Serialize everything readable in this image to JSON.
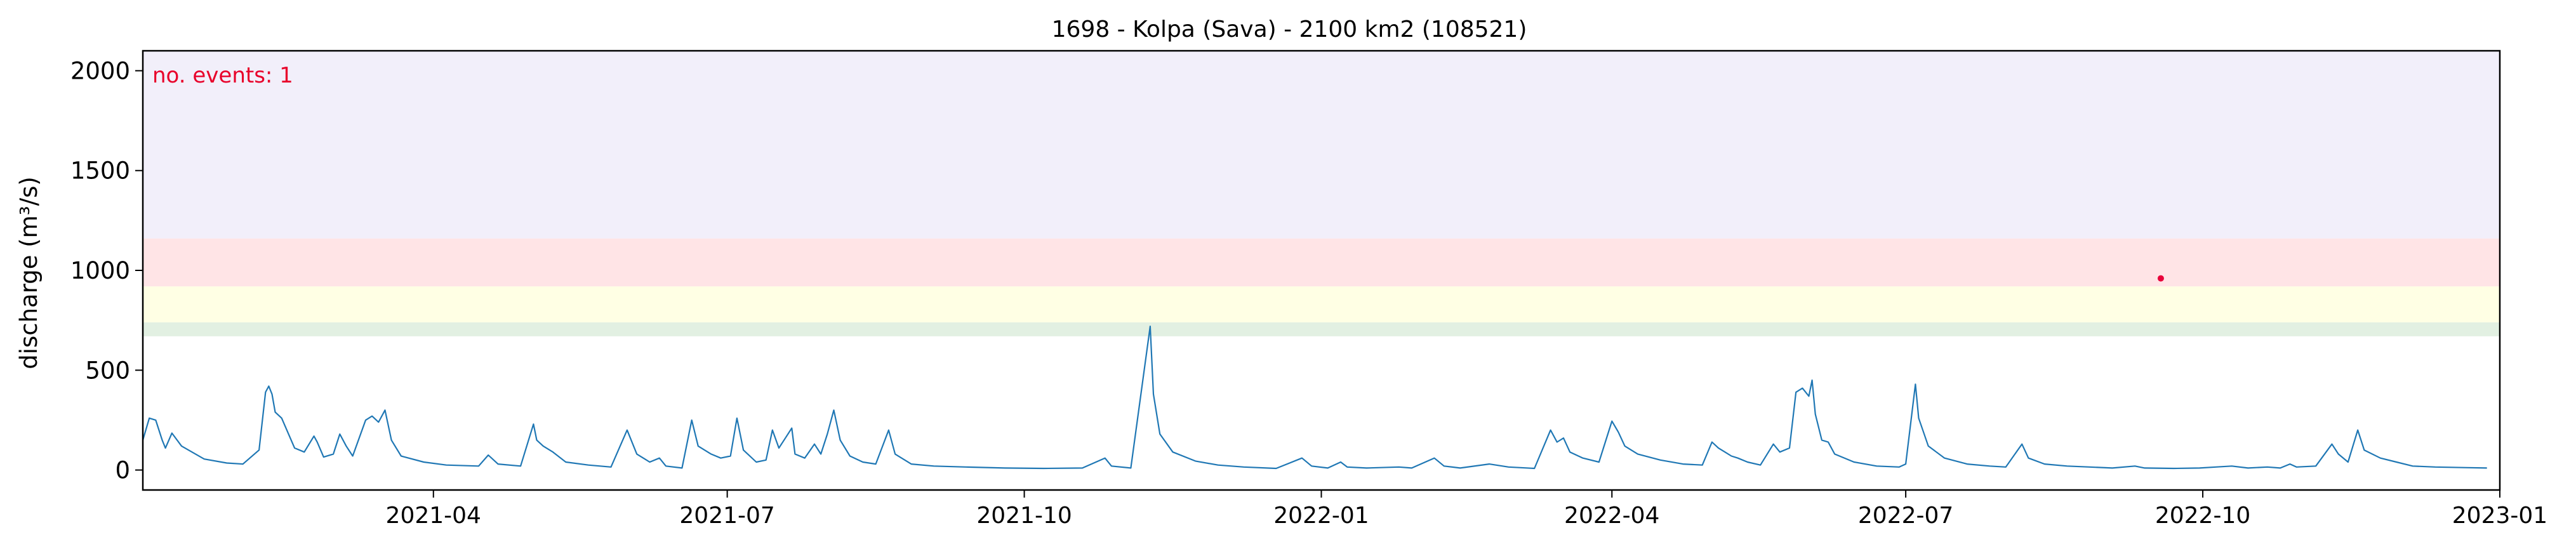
{
  "chart_data": {
    "type": "line",
    "title": "1698 - Kolpa (Sava) - 2100 km2 (108521)",
    "xlabel": "",
    "ylabel": "discharge (m³/s)",
    "annotation": "no. events: 1",
    "xlim": [
      "2021-01-01",
      "2023-01-01"
    ],
    "ylim": [
      -100,
      2100
    ],
    "x_ticks": [
      {
        "date": "2021-04-01",
        "label": "2021-04"
      },
      {
        "date": "2021-07-01",
        "label": "2021-07"
      },
      {
        "date": "2021-10-01",
        "label": "2021-10"
      },
      {
        "date": "2022-01-01",
        "label": "2022-01"
      },
      {
        "date": "2022-04-01",
        "label": "2022-04"
      },
      {
        "date": "2022-07-01",
        "label": "2022-07"
      },
      {
        "date": "2022-10-01",
        "label": "2022-10"
      },
      {
        "date": "2023-01-01",
        "label": "2023-01"
      }
    ],
    "y_ticks": [
      0,
      500,
      1000,
      1500,
      2000
    ],
    "bands": [
      {
        "from": 670,
        "to": 740,
        "color": "#e2f0e2"
      },
      {
        "from": 740,
        "to": 920,
        "color": "#ffffe4"
      },
      {
        "from": 920,
        "to": 1160,
        "color": "#ffe4e6"
      },
      {
        "from": 1160,
        "to": 2100,
        "color": "#f2effa"
      }
    ],
    "line_color": "#1f77b4",
    "event_color": "#e8003a",
    "events": [
      {
        "date": "2022-09-18",
        "value": 960
      }
    ],
    "series": [
      {
        "points": [
          [
            "2021-01-01",
            150
          ],
          [
            "2021-01-03",
            260
          ],
          [
            "2021-01-05",
            250
          ],
          [
            "2021-01-07",
            150
          ],
          [
            "2021-01-08",
            110
          ],
          [
            "2021-01-10",
            185
          ],
          [
            "2021-01-13",
            120
          ],
          [
            "2021-01-20",
            55
          ],
          [
            "2021-01-27",
            35
          ],
          [
            "2021-02-01",
            30
          ],
          [
            "2021-02-06",
            100
          ],
          [
            "2021-02-08",
            390
          ],
          [
            "2021-02-09",
            420
          ],
          [
            "2021-02-10",
            380
          ],
          [
            "2021-02-11",
            290
          ],
          [
            "2021-02-13",
            260
          ],
          [
            "2021-02-17",
            110
          ],
          [
            "2021-02-20",
            90
          ],
          [
            "2021-02-23",
            170
          ],
          [
            "2021-02-24",
            140
          ],
          [
            "2021-02-26",
            65
          ],
          [
            "2021-03-01",
            80
          ],
          [
            "2021-03-03",
            180
          ],
          [
            "2021-03-05",
            120
          ],
          [
            "2021-03-07",
            70
          ],
          [
            "2021-03-11",
            250
          ],
          [
            "2021-03-13",
            270
          ],
          [
            "2021-03-15",
            240
          ],
          [
            "2021-03-17",
            300
          ],
          [
            "2021-03-19",
            150
          ],
          [
            "2021-03-22",
            70
          ],
          [
            "2021-03-29",
            40
          ],
          [
            "2021-04-05",
            25
          ],
          [
            "2021-04-15",
            20
          ],
          [
            "2021-04-18",
            75
          ],
          [
            "2021-04-21",
            30
          ],
          [
            "2021-04-28",
            20
          ],
          [
            "2021-05-02",
            230
          ],
          [
            "2021-05-03",
            150
          ],
          [
            "2021-05-05",
            120
          ],
          [
            "2021-05-08",
            90
          ],
          [
            "2021-05-12",
            40
          ],
          [
            "2021-05-19",
            25
          ],
          [
            "2021-05-26",
            15
          ],
          [
            "2021-05-31",
            200
          ],
          [
            "2021-06-03",
            80
          ],
          [
            "2021-06-07",
            40
          ],
          [
            "2021-06-10",
            60
          ],
          [
            "2021-06-12",
            20
          ],
          [
            "2021-06-17",
            10
          ],
          [
            "2021-06-20",
            250
          ],
          [
            "2021-06-22",
            120
          ],
          [
            "2021-06-26",
            80
          ],
          [
            "2021-06-29",
            60
          ],
          [
            "2021-07-02",
            70
          ],
          [
            "2021-07-04",
            260
          ],
          [
            "2021-07-06",
            100
          ],
          [
            "2021-07-10",
            40
          ],
          [
            "2021-07-13",
            50
          ],
          [
            "2021-07-15",
            200
          ],
          [
            "2021-07-17",
            110
          ],
          [
            "2021-07-19",
            160
          ],
          [
            "2021-07-21",
            210
          ],
          [
            "2021-07-22",
            80
          ],
          [
            "2021-07-25",
            60
          ],
          [
            "2021-07-28",
            130
          ],
          [
            "2021-07-30",
            80
          ],
          [
            "2021-08-01",
            180
          ],
          [
            "2021-08-03",
            300
          ],
          [
            "2021-08-05",
            150
          ],
          [
            "2021-08-08",
            70
          ],
          [
            "2021-08-12",
            40
          ],
          [
            "2021-08-16",
            30
          ],
          [
            "2021-08-20",
            200
          ],
          [
            "2021-08-22",
            80
          ],
          [
            "2021-08-27",
            30
          ],
          [
            "2021-09-03",
            20
          ],
          [
            "2021-09-13",
            15
          ],
          [
            "2021-09-25",
            10
          ],
          [
            "2021-10-07",
            8
          ],
          [
            "2021-10-19",
            10
          ],
          [
            "2021-10-26",
            60
          ],
          [
            "2021-10-28",
            20
          ],
          [
            "2021-11-03",
            10
          ],
          [
            "2021-11-09",
            720
          ],
          [
            "2021-11-10",
            380
          ],
          [
            "2021-11-12",
            180
          ],
          [
            "2021-11-16",
            90
          ],
          [
            "2021-11-23",
            45
          ],
          [
            "2021-11-30",
            25
          ],
          [
            "2021-12-08",
            15
          ],
          [
            "2021-12-18",
            8
          ],
          [
            "2021-12-26",
            60
          ],
          [
            "2021-12-29",
            20
          ],
          [
            "2022-01-03",
            10
          ],
          [
            "2022-01-07",
            40
          ],
          [
            "2022-01-09",
            15
          ],
          [
            "2022-01-15",
            10
          ],
          [
            "2022-01-25",
            15
          ],
          [
            "2022-01-29",
            10
          ],
          [
            "2022-02-05",
            60
          ],
          [
            "2022-02-08",
            20
          ],
          [
            "2022-02-13",
            10
          ],
          [
            "2022-02-22",
            30
          ],
          [
            "2022-02-28",
            15
          ],
          [
            "2022-03-08",
            8
          ],
          [
            "2022-03-13",
            200
          ],
          [
            "2022-03-15",
            140
          ],
          [
            "2022-03-17",
            160
          ],
          [
            "2022-03-19",
            90
          ],
          [
            "2022-03-23",
            60
          ],
          [
            "2022-03-28",
            40
          ],
          [
            "2022-04-01",
            245
          ],
          [
            "2022-04-03",
            190
          ],
          [
            "2022-04-05",
            120
          ],
          [
            "2022-04-09",
            80
          ],
          [
            "2022-04-16",
            50
          ],
          [
            "2022-04-23",
            30
          ],
          [
            "2022-04-29",
            25
          ],
          [
            "2022-05-02",
            140
          ],
          [
            "2022-05-04",
            110
          ],
          [
            "2022-05-06",
            90
          ],
          [
            "2022-05-08",
            70
          ],
          [
            "2022-05-10",
            60
          ],
          [
            "2022-05-13",
            40
          ],
          [
            "2022-05-17",
            25
          ],
          [
            "2022-05-21",
            130
          ],
          [
            "2022-05-23",
            90
          ],
          [
            "2022-05-26",
            110
          ],
          [
            "2022-05-28",
            390
          ],
          [
            "2022-05-30",
            410
          ],
          [
            "2022-06-01",
            370
          ],
          [
            "2022-06-02",
            450
          ],
          [
            "2022-06-03",
            280
          ],
          [
            "2022-06-05",
            150
          ],
          [
            "2022-06-07",
            140
          ],
          [
            "2022-06-09",
            80
          ],
          [
            "2022-06-15",
            40
          ],
          [
            "2022-06-22",
            20
          ],
          [
            "2022-06-29",
            15
          ],
          [
            "2022-07-01",
            30
          ],
          [
            "2022-07-04",
            430
          ],
          [
            "2022-07-05",
            260
          ],
          [
            "2022-07-08",
            120
          ],
          [
            "2022-07-13",
            60
          ],
          [
            "2022-07-20",
            30
          ],
          [
            "2022-07-27",
            20
          ],
          [
            "2022-08-01",
            15
          ],
          [
            "2022-08-06",
            130
          ],
          [
            "2022-08-08",
            60
          ],
          [
            "2022-08-13",
            30
          ],
          [
            "2022-08-20",
            20
          ],
          [
            "2022-08-27",
            15
          ],
          [
            "2022-09-03",
            10
          ],
          [
            "2022-09-10",
            20
          ],
          [
            "2022-09-13",
            10
          ],
          [
            "2022-09-22",
            8
          ],
          [
            "2022-09-30",
            10
          ],
          [
            "2022-10-05",
            15
          ],
          [
            "2022-10-10",
            20
          ],
          [
            "2022-10-15",
            10
          ],
          [
            "2022-10-21",
            15
          ],
          [
            "2022-10-25",
            10
          ],
          [
            "2022-10-28",
            30
          ],
          [
            "2022-10-30",
            15
          ],
          [
            "2022-11-05",
            20
          ],
          [
            "2022-11-10",
            130
          ],
          [
            "2022-11-12",
            80
          ],
          [
            "2022-11-15",
            40
          ],
          [
            "2022-11-18",
            200
          ],
          [
            "2022-11-20",
            100
          ],
          [
            "2022-11-25",
            60
          ],
          [
            "2022-11-30",
            40
          ],
          [
            "2022-12-05",
            20
          ],
          [
            "2022-12-12",
            15
          ],
          [
            "2022-12-22",
            12
          ],
          [
            "2022-12-28",
            10
          ]
        ]
      }
    ]
  }
}
